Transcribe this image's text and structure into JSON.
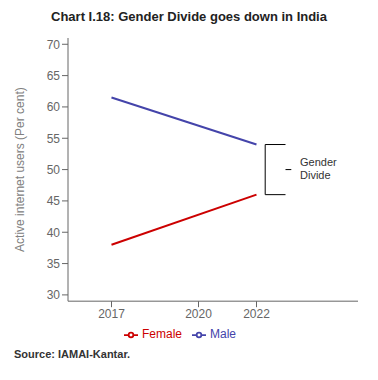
{
  "chart_data": {
    "type": "line",
    "title": "Chart I.18: Gender Divide goes down in India",
    "y_label": "Active internet users (Per cent)",
    "x": [
      2017,
      2022
    ],
    "series": [
      {
        "name": "Female",
        "color": "#cc0000",
        "values": [
          38,
          46
        ]
      },
      {
        "name": "Male",
        "color": "#4444aa",
        "values": [
          61.5,
          54
        ]
      }
    ],
    "xlim": [
      2015.5,
      2025.5
    ],
    "xticks": [
      2017,
      2020,
      2022
    ],
    "ylim": [
      29,
      71
    ],
    "yticks": [
      30,
      35,
      40,
      45,
      50,
      55,
      60,
      65,
      70
    ],
    "grid": false,
    "legend": "bottom",
    "annotation": "Gender\nDivide",
    "source": "Source: IAMAI-Kantar."
  }
}
